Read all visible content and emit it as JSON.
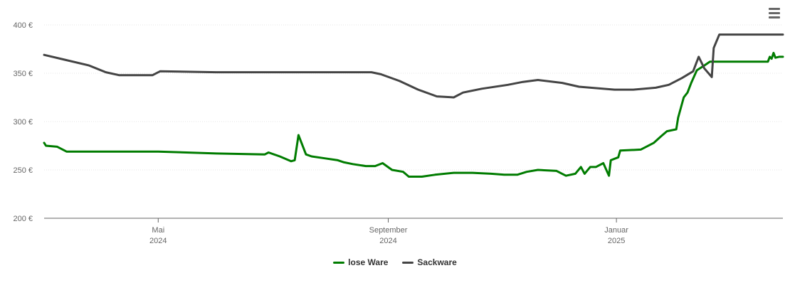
{
  "menu": {
    "icon": "hamburger-menu-icon"
  },
  "chart_data": {
    "type": "line",
    "title": "",
    "xlabel": "",
    "ylabel": "",
    "ylim": [
      200,
      400
    ],
    "y_ticks": [
      200,
      250,
      300,
      350,
      400
    ],
    "y_tick_labels": [
      "200 €",
      "250 €",
      "300 €",
      "350 €",
      "400 €"
    ],
    "x_range": [
      "2024-03-01",
      "2025-03-31"
    ],
    "x_ticks": [
      {
        "date": "2024-05-01",
        "label": "Mai",
        "year": "2024"
      },
      {
        "date": "2024-09-01",
        "label": "September",
        "year": "2024"
      },
      {
        "date": "2025-01-01",
        "label": "Januar",
        "year": "2025"
      }
    ],
    "grid": true,
    "legend": "bottom-center",
    "series": [
      {
        "name": "lose Ware",
        "color": "#007c00",
        "points": [
          [
            "2024-03-01",
            278
          ],
          [
            "2024-03-02",
            275
          ],
          [
            "2024-03-08",
            274
          ],
          [
            "2024-03-13",
            269
          ],
          [
            "2024-05-01",
            269
          ],
          [
            "2024-06-01",
            267
          ],
          [
            "2024-06-27",
            266
          ],
          [
            "2024-06-29",
            268
          ],
          [
            "2024-07-05",
            264
          ],
          [
            "2024-07-11",
            259
          ],
          [
            "2024-07-13",
            260
          ],
          [
            "2024-07-15",
            286
          ],
          [
            "2024-07-19",
            266
          ],
          [
            "2024-07-22",
            264
          ],
          [
            "2024-07-29",
            262
          ],
          [
            "2024-08-05",
            260
          ],
          [
            "2024-08-08",
            258
          ],
          [
            "2024-08-13",
            256
          ],
          [
            "2024-08-20",
            254
          ],
          [
            "2024-08-25",
            254
          ],
          [
            "2024-08-29",
            257
          ],
          [
            "2024-09-03",
            250
          ],
          [
            "2024-09-09",
            248
          ],
          [
            "2024-09-12",
            243
          ],
          [
            "2024-09-19",
            243
          ],
          [
            "2024-09-26",
            245
          ],
          [
            "2024-10-06",
            247
          ],
          [
            "2024-10-16",
            247
          ],
          [
            "2024-10-26",
            246
          ],
          [
            "2024-11-02",
            245
          ],
          [
            "2024-11-09",
            245
          ],
          [
            "2024-11-14",
            248
          ],
          [
            "2024-11-20",
            250
          ],
          [
            "2024-11-30",
            249
          ],
          [
            "2024-12-15",
            246
          ],
          [
            "2024-12-28",
            244
          ],
          [
            "2024-12-05",
            244
          ],
          [
            "2024-12-10",
            246
          ],
          [
            "2024-12-13",
            253
          ],
          [
            "2024-12-18",
            253
          ],
          [
            "2024-12-21",
            253
          ],
          [
            "2024-12-25",
            257
          ],
          [
            "2024-12-29",
            260
          ],
          [
            "2025-01-02",
            263
          ],
          [
            "2025-01-03",
            270
          ],
          [
            "2025-01-14",
            271
          ],
          [
            "2025-01-21",
            278
          ],
          [
            "2025-01-25",
            285
          ],
          [
            "2025-01-28",
            290
          ],
          [
            "2025-02-02",
            292
          ],
          [
            "2025-02-03",
            304
          ],
          [
            "2025-02-06",
            325
          ],
          [
            "2025-02-08",
            330
          ],
          [
            "2025-02-10",
            340
          ],
          [
            "2025-02-13",
            353
          ],
          [
            "2025-02-17",
            358
          ],
          [
            "2025-02-20",
            362
          ],
          [
            "2025-03-23",
            362
          ],
          [
            "2025-03-24",
            367
          ],
          [
            "2025-03-25",
            365
          ],
          [
            "2025-03-26",
            371
          ],
          [
            "2025-03-27",
            366
          ],
          [
            "2025-03-29",
            367
          ],
          [
            "2025-03-31",
            367
          ]
        ]
      },
      {
        "name": "Sackware",
        "color": "#444444",
        "points": [
          [
            "2024-03-01",
            369
          ],
          [
            "2024-03-12",
            364
          ],
          [
            "2024-03-25",
            358
          ],
          [
            "2024-04-03",
            351
          ],
          [
            "2024-04-10",
            348
          ],
          [
            "2024-04-28",
            348
          ],
          [
            "2024-05-02",
            352
          ],
          [
            "2024-06-01",
            351
          ],
          [
            "2024-07-01",
            351
          ],
          [
            "2024-08-23",
            351
          ],
          [
            "2024-08-28",
            349
          ],
          [
            "2024-09-07",
            342
          ],
          [
            "2024-09-17",
            333
          ],
          [
            "2024-09-27",
            326
          ],
          [
            "2024-10-06",
            325
          ],
          [
            "2024-10-11",
            330
          ],
          [
            "2024-10-21",
            334
          ],
          [
            "2024-11-04",
            338
          ],
          [
            "2024-11-12",
            341
          ],
          [
            "2024-11-20",
            343
          ],
          [
            "2024-12-03",
            340
          ],
          [
            "2024-12-12",
            336
          ],
          [
            "2024-12-31",
            333
          ],
          [
            "2025-01-10",
            333
          ],
          [
            "2025-01-22",
            335
          ],
          [
            "2025-01-29",
            338
          ],
          [
            "2025-02-05",
            345
          ],
          [
            "2025-02-11",
            352
          ],
          [
            "2025-02-14",
            367
          ],
          [
            "2025-02-17",
            355
          ],
          [
            "2025-02-21",
            346
          ],
          [
            "2025-02-22",
            376
          ],
          [
            "2025-02-25",
            390
          ],
          [
            "2025-03-31",
            390
          ]
        ]
      }
    ]
  }
}
